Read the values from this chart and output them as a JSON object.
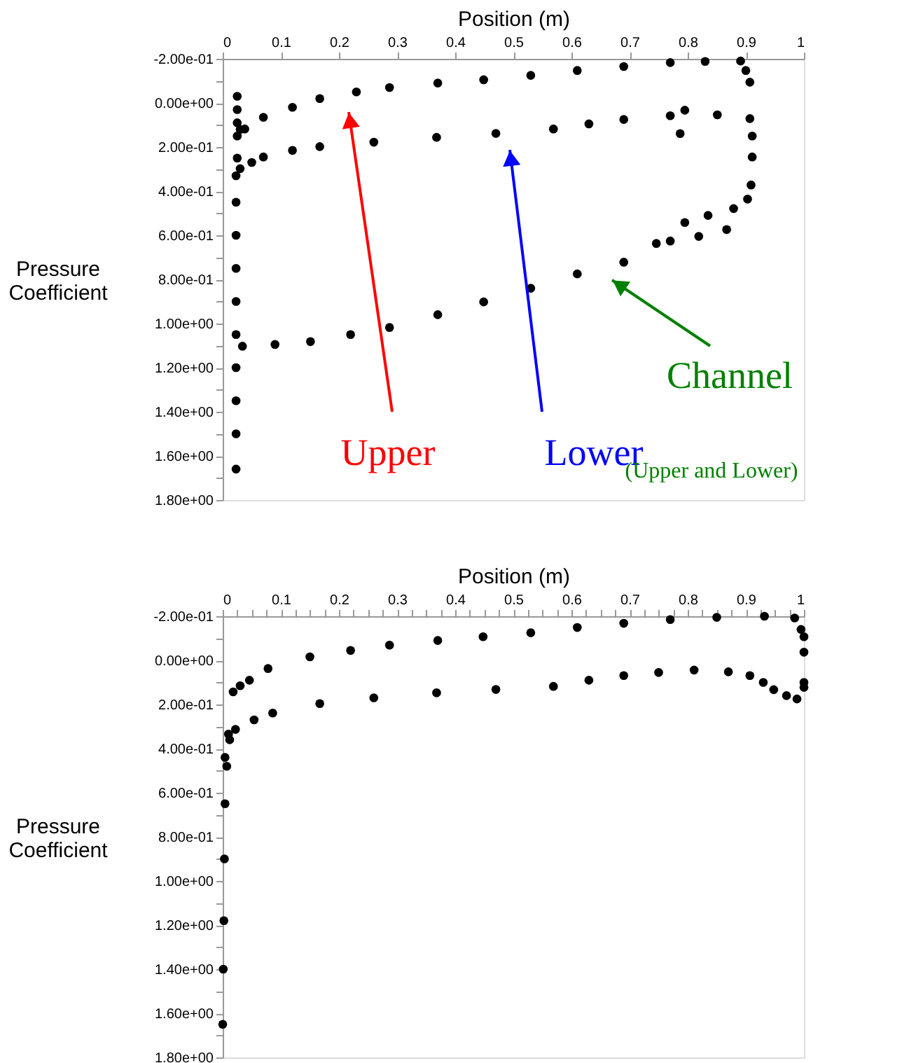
{
  "chart_data": [
    {
      "type": "scatter",
      "xlabel": "Position (m)",
      "ylabel": "Pressure Coefficient",
      "marker": "circle",
      "grid": false,
      "xlim": [
        0,
        1
      ],
      "ylim": [
        1.8,
        -0.2
      ],
      "xticks": [
        0,
        0.1,
        0.2,
        0.3,
        0.4,
        0.5,
        0.6,
        0.7,
        0.8,
        0.9,
        1
      ],
      "yticks": [
        {
          "value": -0.2,
          "label": "-2.00e-01"
        },
        {
          "value": -0.1,
          "label": null
        },
        {
          "value": 0,
          "label": "0.00e+00"
        },
        {
          "value": 0.1,
          "label": null
        },
        {
          "value": 0.2,
          "label": "2.00e-01"
        },
        {
          "value": 0.3,
          "label": null
        },
        {
          "value": 0.4,
          "label": "4.00e-01"
        },
        {
          "value": 0.5,
          "label": null
        },
        {
          "value": 0.6,
          "label": "6.00e-01"
        },
        {
          "value": 0.7,
          "label": null
        },
        {
          "value": 0.8,
          "label": "8.00e-01"
        },
        {
          "value": 0.9,
          "label": null
        },
        {
          "value": 1.0,
          "label": "1.00e+00"
        },
        {
          "value": 1.1,
          "label": null
        },
        {
          "value": 1.2,
          "label": "1.20e+00"
        },
        {
          "value": 1.3,
          "label": null
        },
        {
          "value": 1.4,
          "label": "1.40e+00"
        },
        {
          "value": 1.5,
          "label": null
        },
        {
          "value": 1.6,
          "label": "1.60e+00"
        },
        {
          "value": 1.7,
          "label": null
        },
        {
          "value": 1.8,
          "label": "1.80e+00"
        }
      ],
      "series": [
        {
          "color": "#000000",
          "x": [
            0.025,
            0.025,
            0.025,
            0.03,
            0.038,
            0.07,
            0.12,
            0.167,
            0.23,
            0.287,
            0.37,
            0.449,
            0.53,
            0.61,
            0.69,
            0.77,
            0.83,
            0.891,
            0.9,
            0.907
          ],
          "values": [
            -0.03,
            0.03,
            0.09,
            0.12,
            0.118,
            0.065,
            0.02,
            -0.02,
            -0.05,
            -0.07,
            -0.09,
            -0.105,
            -0.125,
            -0.147,
            -0.165,
            -0.183,
            -0.188,
            -0.19,
            -0.147,
            -0.094
          ]
        },
        {
          "color": "#000000",
          "x": [
            0.025,
            0.025,
            0.03,
            0.05,
            0.07,
            0.12,
            0.167,
            0.26,
            0.368,
            0.47,
            0.569,
            0.63,
            0.69,
            0.77,
            0.787,
            0.795,
            0.851,
            0.907,
            0.911,
            0.911
          ],
          "values": [
            0.15,
            0.25,
            0.298,
            0.27,
            0.245,
            0.215,
            0.198,
            0.178,
            0.156,
            0.138,
            0.118,
            0.095,
            0.075,
            0.058,
            0.139,
            0.033,
            0.054,
            0.071,
            0.15,
            0.245
          ]
        },
        {
          "color": "#000000",
          "x": [
            0.023,
            0.023,
            0.023,
            0.023,
            0.023,
            0.023,
            0.023,
            0.023,
            0.023,
            0.023,
            0.034,
            0.09,
            0.151,
            0.22,
            0.287,
            0.37,
            0.449,
            0.53,
            0.61,
            0.69,
            0.746,
            0.77,
            0.795,
            0.819,
            0.835,
            0.867,
            0.879,
            0.903,
            0.909
          ],
          "values": [
            0.33,
            0.45,
            0.6,
            0.75,
            0.9,
            1.05,
            1.2,
            1.35,
            1.5,
            1.66,
            1.103,
            1.095,
            1.082,
            1.05,
            1.018,
            0.96,
            0.902,
            0.84,
            0.775,
            0.722,
            0.637,
            0.626,
            0.542,
            0.605,
            0.51,
            0.574,
            0.479,
            0.436,
            0.372
          ]
        }
      ],
      "annotations": [
        "Upper",
        "Lower",
        "Channel",
        "(Upper and Lower)"
      ]
    },
    {
      "type": "scatter",
      "xlabel": "Position (m)",
      "ylabel": "Pressure Coefficient",
      "marker": "circle",
      "grid": false,
      "xlim": [
        0,
        1
      ],
      "ylim": [
        1.8,
        -0.2
      ],
      "xticks": [
        0,
        {
          "value": 0.025,
          "label": null
        },
        {
          "value": 0.05,
          "label": null
        },
        {
          "value": 0.075,
          "label": null
        },
        0.1,
        {
          "value": 0.125,
          "label": null
        },
        {
          "value": 0.15,
          "label": null
        },
        {
          "value": 0.175,
          "label": null
        },
        0.2,
        {
          "value": 0.225,
          "label": null
        },
        {
          "value": 0.25,
          "label": null
        },
        {
          "value": 0.275,
          "label": null
        },
        0.3,
        {
          "value": 0.325,
          "label": null
        },
        {
          "value": 0.35,
          "label": null
        },
        {
          "value": 0.375,
          "label": null
        },
        0.4,
        {
          "value": 0.425,
          "label": null
        },
        {
          "value": 0.45,
          "label": null
        },
        {
          "value": 0.475,
          "label": null
        },
        0.5,
        {
          "value": 0.525,
          "label": null
        },
        {
          "value": 0.55,
          "label": null
        },
        {
          "value": 0.575,
          "label": null
        },
        0.6,
        {
          "value": 0.625,
          "label": null
        },
        {
          "value": 0.65,
          "label": null
        },
        {
          "value": 0.675,
          "label": null
        },
        0.7,
        {
          "value": 0.725,
          "label": null
        },
        {
          "value": 0.75,
          "label": null
        },
        {
          "value": 0.775,
          "label": null
        },
        0.8,
        {
          "value": 0.825,
          "label": null
        },
        {
          "value": 0.85,
          "label": null
        },
        {
          "value": 0.875,
          "label": null
        },
        0.9,
        {
          "value": 0.925,
          "label": null
        },
        {
          "value": 0.95,
          "label": null
        },
        {
          "value": 0.975,
          "label": null
        },
        1
      ],
      "yticks": [
        {
          "value": -0.2,
          "label": "-2.00e-01"
        },
        {
          "value": -0.1,
          "label": null
        },
        {
          "value": 0,
          "label": "0.00e+00"
        },
        {
          "value": 0.1,
          "label": null
        },
        {
          "value": 0.2,
          "label": "2.00e-01"
        },
        {
          "value": 0.3,
          "label": null
        },
        {
          "value": 0.4,
          "label": "4.00e-01"
        },
        {
          "value": 0.5,
          "label": null
        },
        {
          "value": 0.6,
          "label": "6.00e-01"
        },
        {
          "value": 0.7,
          "label": null
        },
        {
          "value": 0.8,
          "label": "8.00e-01"
        },
        {
          "value": 0.9,
          "label": null
        },
        {
          "value": 1.0,
          "label": "1.00e+00"
        },
        {
          "value": 1.1,
          "label": null
        },
        {
          "value": 1.2,
          "label": "1.20e+00"
        },
        {
          "value": 1.3,
          "label": null
        },
        {
          "value": 1.4,
          "label": "1.40e+00"
        },
        {
          "value": 1.5,
          "label": null
        },
        {
          "value": 1.6,
          "label": "1.60e+00"
        },
        {
          "value": 1.7,
          "label": null
        },
        {
          "value": 1.8,
          "label": "1.80e+00"
        }
      ],
      "series": [
        {
          "color": "#000000",
          "x": [
            0.0,
            0.001,
            0.002,
            0.003,
            0.004,
            0.007,
            0.01,
            0.018,
            0.03,
            0.046,
            0.078,
            0.15,
            0.22,
            0.287,
            0.37,
            0.448,
            0.53,
            0.61,
            0.69,
            0.77,
            0.85,
            0.932,
            0.984,
            0.995,
            1.0,
            1.0
          ],
          "values": [
            1.65,
            1.4,
            1.18,
            0.9,
            0.65,
            0.48,
            0.334,
            0.143,
            0.115,
            0.09,
            0.037,
            -0.016,
            -0.045,
            -0.069,
            -0.09,
            -0.107,
            -0.125,
            -0.149,
            -0.168,
            -0.185,
            -0.195,
            -0.2,
            -0.192,
            -0.14,
            -0.107,
            -0.037
          ]
        },
        {
          "color": "#000000",
          "x": [
            0.004,
            0.012,
            0.022,
            0.054,
            0.086,
            0.167,
            0.26,
            0.368,
            0.47,
            0.569,
            0.63,
            0.69,
            0.75,
            0.811,
            0.87,
            0.907,
            0.93,
            0.948,
            0.97,
            0.988,
            1.0,
            1.0
          ],
          "values": [
            0.44,
            0.36,
            0.313,
            0.27,
            0.239,
            0.196,
            0.17,
            0.147,
            0.132,
            0.118,
            0.09,
            0.069,
            0.055,
            0.044,
            0.052,
            0.069,
            0.1,
            0.133,
            0.16,
            0.175,
            0.122,
            0.1
          ]
        }
      ]
    }
  ]
}
